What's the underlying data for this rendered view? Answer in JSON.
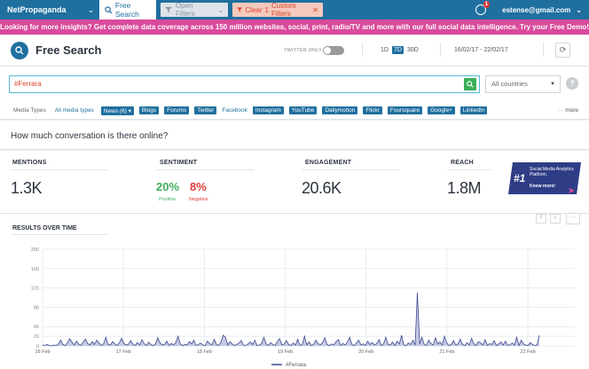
{
  "topbar": {
    "brand": "NetPropaganda",
    "tab_free_search": "Free Search",
    "tab_open_filters": "Open Filters",
    "clear_label": "Clear",
    "clear_count": "1",
    "clear_rest": "Custom Filters",
    "notif_count": "1",
    "user_email": "estense@gmail.com"
  },
  "promo": "Looking for more insights? Get complete data coverage across 150 million websites, social, print, radio/TV and more with our full social data intelligence. Try your Free Demo!",
  "header": {
    "title": "Free Search",
    "twitter_only": "TWITTER ONLY",
    "ranges": [
      "1D",
      "7D",
      "30D"
    ],
    "date_range": "16/02/17 - 22/02/17"
  },
  "search": {
    "query": "#Ferrara",
    "country": "All countries"
  },
  "media": {
    "label": "Media Types",
    "all": "All media types",
    "chips": [
      "News (6) ▾",
      "Blogs",
      "Forums",
      "Twitter"
    ],
    "plain": "Facebook",
    "chips2": [
      "Instagram",
      "YouTube",
      "Dailymotion",
      "Flickr",
      "Foursquare",
      "Google+",
      "LinkedIn"
    ],
    "more": "··· more"
  },
  "question": "How much conversation is there online?",
  "kpis": {
    "mentions_label": "MENTIONS",
    "mentions_value": "1.3K",
    "sentiment_label": "SENTIMENT",
    "positive_value": "20%",
    "positive_label": "Positive",
    "negative_value": "8%",
    "negative_label": "Negative",
    "engagement_label": "ENGAGEMENT",
    "engagement_value": "20.6K",
    "reach_label": "REACH",
    "reach_value": "1.8M"
  },
  "badge": {
    "num": "#1",
    "line1": "Social Media Analytics Platform.",
    "line2": "Know more!"
  },
  "results": {
    "title": "RESULTS OVER TIME"
  },
  "chart_data": {
    "type": "area",
    "title": "RESULTS OVER TIME",
    "ylim": [
      0,
      200
    ],
    "yticks": [
      0,
      20,
      40,
      80,
      120,
      160,
      200
    ],
    "x_ticks": [
      "16 Feb",
      "17 Feb",
      "18 Feb",
      "19 Feb",
      "20 Feb",
      "21 Feb",
      "22 Feb"
    ],
    "grid": true,
    "legend": "bottom-center",
    "series": [
      {
        "name": "#Ferrara",
        "color": "#3d4a8f",
        "values": [
          2,
          1,
          3,
          1,
          0,
          2,
          1,
          4,
          12,
          3,
          1,
          6,
          15,
          8,
          2,
          10,
          4,
          1,
          8,
          14,
          5,
          2,
          9,
          3,
          12,
          6,
          1,
          4,
          18,
          3,
          2,
          9,
          4,
          1,
          6,
          16,
          5,
          2,
          3,
          11,
          4,
          1,
          7,
          2,
          13,
          5,
          1,
          8,
          3,
          1,
          4,
          17,
          6,
          2,
          3,
          10,
          1,
          5,
          2,
          7,
          20,
          4,
          1,
          3,
          2,
          9,
          4,
          12,
          1,
          3,
          6,
          2,
          1,
          10,
          5,
          2,
          14,
          3,
          1,
          8,
          22,
          18,
          2,
          9,
          4,
          1,
          3,
          6,
          11,
          2,
          1,
          4,
          8,
          3,
          12,
          1,
          2,
          5,
          18,
          4,
          1,
          7,
          3,
          1,
          9,
          15,
          2,
          4,
          11,
          3,
          1,
          6,
          2,
          14,
          1,
          3,
          20,
          2,
          8,
          1,
          3,
          12,
          5,
          2,
          7,
          17,
          3,
          1,
          4,
          2,
          9,
          13,
          1,
          5,
          2,
          8,
          18,
          3,
          1,
          6,
          12,
          2,
          4,
          1,
          10,
          3,
          7,
          2,
          5,
          13,
          1,
          4,
          18,
          3,
          2,
          8,
          1,
          10,
          4,
          22,
          2,
          1,
          6,
          3,
          12,
          2,
          110,
          4,
          18,
          3,
          1,
          12,
          5,
          2,
          17,
          4,
          8,
          2,
          20,
          6,
          1,
          3,
          11,
          2,
          4,
          14,
          3,
          1,
          7,
          2,
          16,
          4,
          1,
          9,
          6,
          2,
          13,
          1,
          5,
          3,
          11,
          1,
          4,
          8,
          2,
          10,
          1,
          3,
          6,
          2,
          18,
          1,
          12,
          4,
          2,
          1,
          7,
          3,
          1,
          2,
          22
        ]
      }
    ]
  }
}
